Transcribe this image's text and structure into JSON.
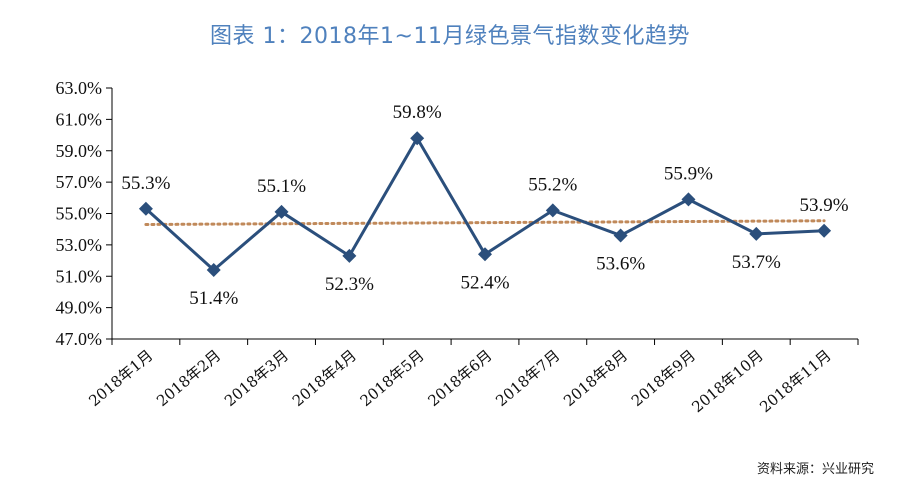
{
  "title": "图表 1：2018年1~11月绿色景气指数变化趋势",
  "source": "资料来源：兴业研究",
  "colors": {
    "title": "#4f81bd",
    "line": "#2b4f7c",
    "trend": "#c0895a",
    "axis": "#000000"
  },
  "chart_data": {
    "type": "line",
    "categories": [
      "2018年1月",
      "2018年2月",
      "2018年3月",
      "2018年4月",
      "2018年5月",
      "2018年6月",
      "2018年7月",
      "2018年8月",
      "2018年9月",
      "2018年10月",
      "2018年11月"
    ],
    "series": [
      {
        "values": [
          55.3,
          51.4,
          55.1,
          52.3,
          59.8,
          52.4,
          55.2,
          53.6,
          55.9,
          53.7,
          53.9
        ]
      }
    ],
    "data_labels": [
      "55.3%",
      "51.4%",
      "55.1%",
      "52.3%",
      "59.8%",
      "52.4%",
      "55.2%",
      "53.6%",
      "55.9%",
      "53.7%",
      "53.9%"
    ],
    "trendline": {
      "type": "linear",
      "style": "dotted"
    },
    "y_ticks": [
      "47.0%",
      "49.0%",
      "51.0%",
      "53.0%",
      "55.0%",
      "57.0%",
      "59.0%",
      "61.0%",
      "63.0%"
    ],
    "ylim": [
      47.0,
      63.0
    ],
    "y_step": 2.0,
    "grid": false,
    "legend": "none"
  }
}
